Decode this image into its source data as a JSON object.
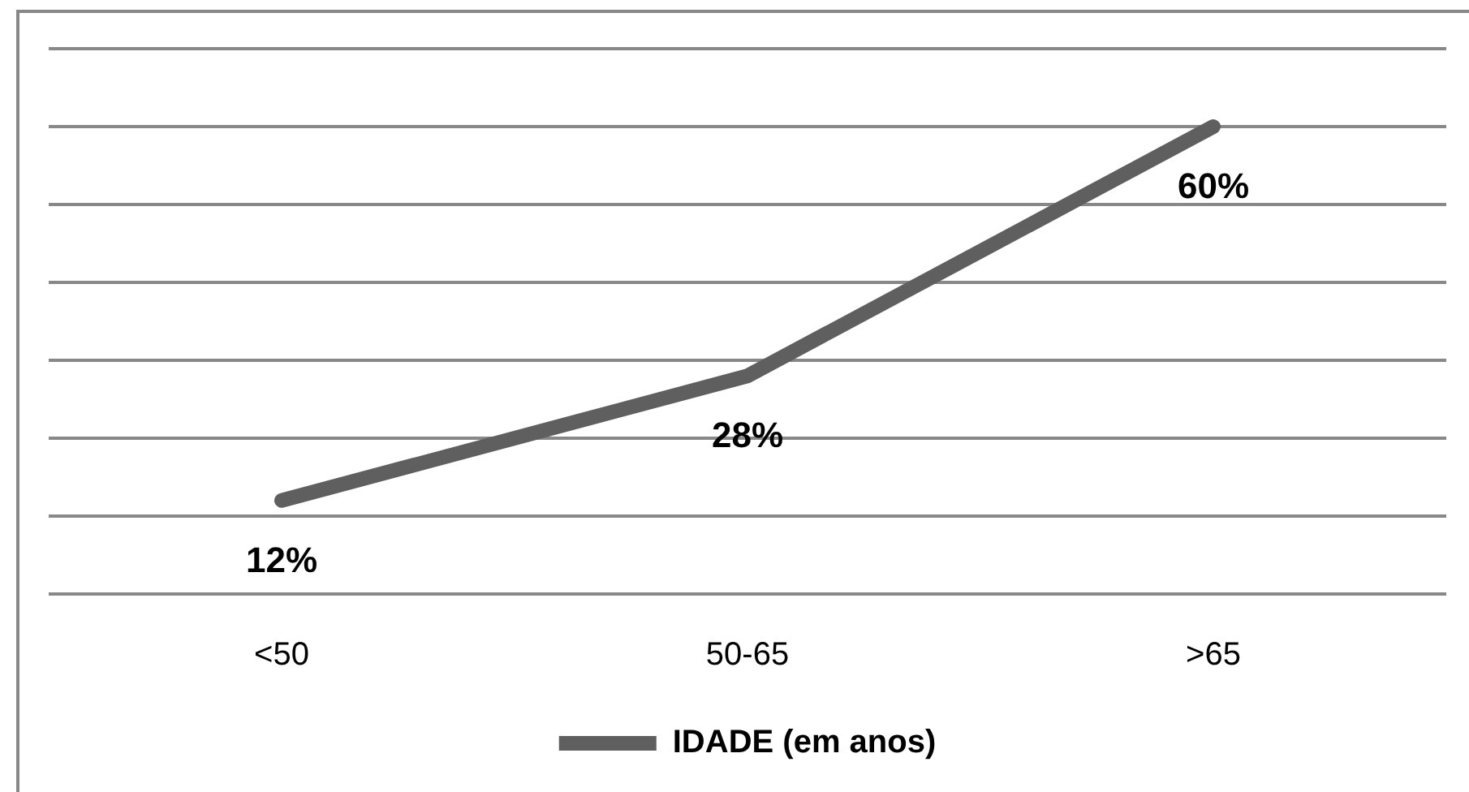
{
  "chart_data": {
    "type": "line",
    "categories": [
      "<50",
      "50-65",
      ">65"
    ],
    "series": [
      {
        "name": "IDADE (em anos)",
        "color": "#5f5f5f",
        "values": [
          12,
          28,
          60
        ],
        "value_labels": [
          "12%",
          "28%",
          "60%"
        ]
      }
    ],
    "ylim": [
      0,
      70
    ],
    "yticks": [
      {
        "value": 0,
        "label": null
      },
      {
        "value": 10,
        "label": null
      },
      {
        "value": 20,
        "label": null
      },
      {
        "value": 30,
        "label": null
      },
      {
        "value": 40,
        "label": null
      },
      {
        "value": 50,
        "label": null
      },
      {
        "value": 60,
        "label": null
      },
      {
        "value": 70,
        "label": null
      }
    ],
    "grid": "y",
    "tick_labels": "x",
    "legend": "bottom",
    "marker": "none",
    "line_style": "solid"
  }
}
